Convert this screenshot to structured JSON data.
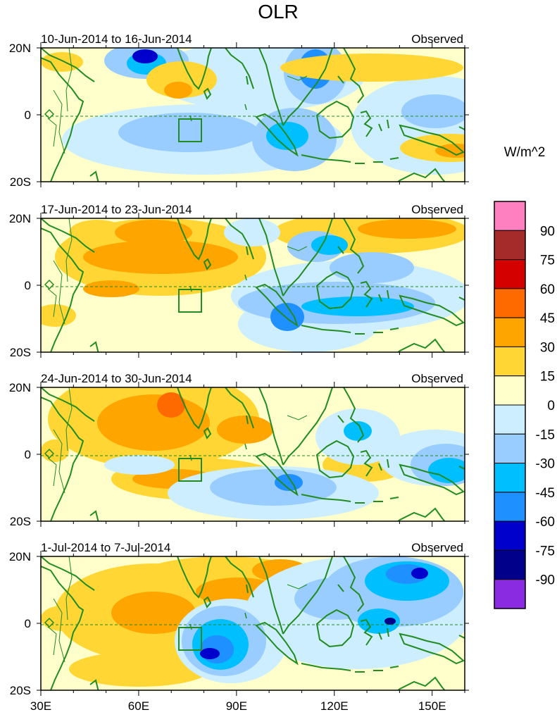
{
  "title": "OLR",
  "unit_label": "W/m^2",
  "lat_labels": [
    "20N",
    "0",
    "20S"
  ],
  "lon_labels": [
    "30E",
    "60E",
    "90E",
    "120E",
    "150E"
  ],
  "panels": [
    {
      "period": "10-Jun-2014 to 16-Jun-2014",
      "tag": "Observed"
    },
    {
      "period": "17-Jun-2014 to 23-Jun-2014",
      "tag": "Observed"
    },
    {
      "period": "24-Jun-2014 to 30-Jun-2014",
      "tag": "Observed"
    },
    {
      "period": "1-Jul-2014 to 7-Jul-2014",
      "tag": "Observed"
    }
  ],
  "colorbar": {
    "labels": [
      "90",
      "75",
      "60",
      "45",
      "30",
      "15",
      "0",
      "-15",
      "-30",
      "-45",
      "-60",
      "-75",
      "-90"
    ],
    "colors": [
      "#ff80c0",
      "#a52a2a",
      "#d40000",
      "#ff6a00",
      "#ffa500",
      "#ffd633",
      "#ffffcc",
      "#cceeff",
      "#99ccff",
      "#00bfff",
      "#1e90ff",
      "#0000cd",
      "#00008b",
      "#8a2be2"
    ]
  },
  "palette": {
    "land": "#228b22",
    "light_yellow": "#ffffcc",
    "yellow": "#ffd633",
    "orange": "#ffa500",
    "dark_orange": "#ff6a00",
    "pale_blue": "#cceeff",
    "light_blue": "#99ccff",
    "cyan": "#00bfff",
    "blue": "#1e90ff",
    "medium_blue": "#0000cd",
    "navy": "#00008b"
  }
}
